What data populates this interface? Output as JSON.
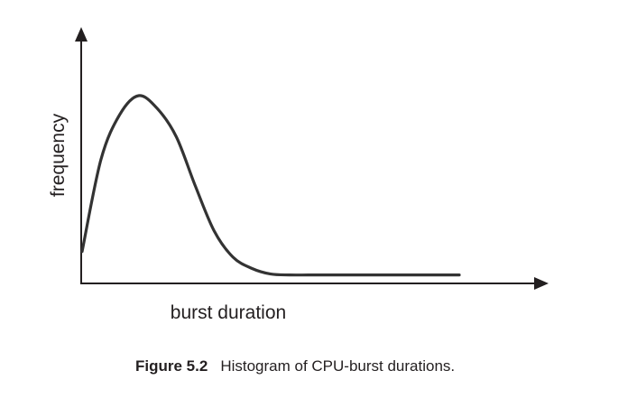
{
  "chart_data": {
    "type": "line",
    "xlabel": "burst duration",
    "ylabel": "frequency",
    "x": [
      0,
      0.05,
      0.1,
      0.15,
      0.2,
      0.25,
      0.3,
      0.35,
      0.4,
      0.45,
      0.5,
      0.55,
      0.6,
      0.65,
      0.7,
      0.75,
      0.8,
      0.85,
      0.9,
      0.95,
      1
    ],
    "series": [
      {
        "values": [
          0.17,
          0.66,
          0.9,
          1.0,
          0.93,
          0.78,
          0.52,
          0.28,
          0.14,
          0.08,
          0.05,
          0.045,
          0.045,
          0.045,
          0.045,
          0.045,
          0.045,
          0.045,
          0.045,
          0.045,
          0.045
        ]
      }
    ],
    "xlim": [
      0,
      1
    ],
    "ylim": [
      0,
      1
    ],
    "grid": false,
    "legend": "none",
    "line_color": "#333333",
    "axis_color": "#231f20"
  },
  "caption": {
    "figure_number": "Figure 5.2",
    "text": "Histogram of CPU-burst durations."
  }
}
